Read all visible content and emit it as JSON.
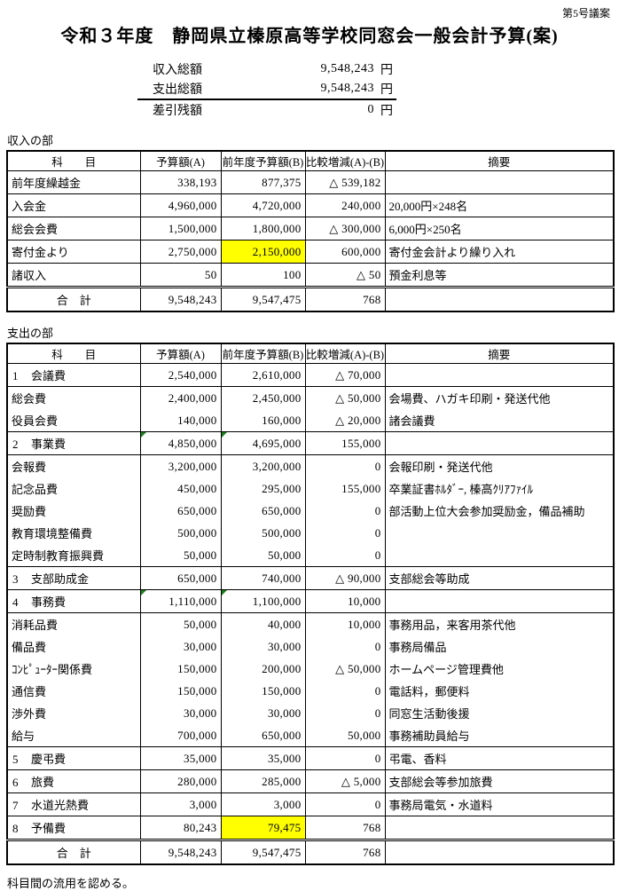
{
  "page": {
    "doc_number": "第5号議案",
    "title": "令和３年度　静岡県立榛原高等学校同窓会一般会計予算(案)",
    "footer_note": "科目間の流用を認める。"
  },
  "summary": {
    "rows": [
      {
        "label": "収入総額",
        "value": "9,548,243",
        "unit": "円"
      },
      {
        "label": "支出総額",
        "value": "9,548,243",
        "unit": "円"
      },
      {
        "label": "差引残額",
        "value": "0",
        "unit": "円"
      }
    ]
  },
  "columns": [
    "科　　目",
    "予算額(A)",
    "前年度予算額(B)",
    "比較増減(A)-(B)",
    "摘要"
  ],
  "colors": {
    "highlight_yellow": "#ffff00",
    "triangle_marker_green": "#1e7d1e",
    "border_black": "#000000"
  },
  "income": {
    "section_label": "収入の部",
    "rows": [
      {
        "item": "前年度繰越金",
        "a": "338,193",
        "b": "877,375",
        "diff": "△ 539,182",
        "remark": ""
      },
      {
        "item": "入会金",
        "a": "4,960,000",
        "b": "4,720,000",
        "diff": "240,000",
        "remark": "20,000円×248名"
      },
      {
        "item": "総会会費",
        "a": "1,500,000",
        "b": "1,800,000",
        "diff": "△ 300,000",
        "remark": "6,000円×250名"
      },
      {
        "item": "寄付金より",
        "a": "2,750,000",
        "b": "2,150,000",
        "diff": "600,000",
        "remark": "寄付金会計より繰り入れ",
        "hl_b": true
      },
      {
        "item": "諸収入",
        "a": "50",
        "b": "100",
        "diff": "△ 50",
        "remark": "預金利息等"
      },
      {
        "item": "合　計",
        "a": "9,548,243",
        "b": "9,547,475",
        "diff": "768",
        "remark": "",
        "total": true,
        "dbl": true
      }
    ]
  },
  "expense": {
    "section_label": "支出の部",
    "rows": [
      {
        "no": "1",
        "item": "会議費",
        "a": "2,540,000",
        "b": "2,610,000",
        "diff": "△ 70,000",
        "remark": ""
      },
      {
        "item": "総会費",
        "indent": true,
        "a": "2,400,000",
        "b": "2,450,000",
        "diff": "△ 50,000",
        "remark": "会場費、ハガキ印刷・発送代他",
        "nb": true
      },
      {
        "item": "役員会費",
        "indent": true,
        "a": "140,000",
        "b": "160,000",
        "diff": "△ 20,000",
        "remark": "諸会議費"
      },
      {
        "no": "2",
        "item": "事業費",
        "a": "4,850,000",
        "b": "4,695,000",
        "diff": "155,000",
        "remark": "",
        "tri_a": true,
        "tri_b": true
      },
      {
        "item": "会報費",
        "indent": true,
        "a": "3,200,000",
        "b": "3,200,000",
        "diff": "0",
        "remark": "会報印刷・発送代他",
        "nb": true
      },
      {
        "item": "記念品費",
        "indent": true,
        "a": "450,000",
        "b": "295,000",
        "diff": "155,000",
        "remark": "卒業証書ﾎﾙﾀﾞｰ, 榛高ｸﾘｱﾌｧｲﾙ",
        "nb": true
      },
      {
        "item": "奨励費",
        "indent": true,
        "a": "650,000",
        "b": "650,000",
        "diff": "0",
        "remark": "部活動上位大会参加奨励金，備品補助",
        "nb": true
      },
      {
        "item": "教育環境整備費",
        "indent": true,
        "a": "500,000",
        "b": "500,000",
        "diff": "0",
        "remark": "",
        "nb": true
      },
      {
        "item": "定時制教育振興費",
        "indent": true,
        "a": "50,000",
        "b": "50,000",
        "diff": "0",
        "remark": ""
      },
      {
        "no": "3",
        "item": "支部助成金",
        "a": "650,000",
        "b": "740,000",
        "diff": "△ 90,000",
        "remark": "支部総会等助成"
      },
      {
        "no": "4",
        "item": "事務費",
        "a": "1,110,000",
        "b": "1,100,000",
        "diff": "10,000",
        "remark": "",
        "tri_a": true,
        "tri_b": true
      },
      {
        "item": "消耗品費",
        "indent": true,
        "a": "50,000",
        "b": "40,000",
        "diff": "10,000",
        "remark": "事務用品，来客用茶代他",
        "nb": true
      },
      {
        "item": "備品費",
        "indent": true,
        "a": "30,000",
        "b": "30,000",
        "diff": "0",
        "remark": "事務局備品",
        "nb": true
      },
      {
        "item": "ｺﾝﾋﾟｭｰﾀｰ関係費",
        "indent": true,
        "a": "150,000",
        "b": "200,000",
        "diff": "△ 50,000",
        "remark": "ホームページ管理費他",
        "nb": true
      },
      {
        "item": "通信費",
        "indent": true,
        "a": "150,000",
        "b": "150,000",
        "diff": "0",
        "remark": "電話料，郵便料",
        "nb": true
      },
      {
        "item": "渉外費",
        "indent": true,
        "a": "30,000",
        "b": "30,000",
        "diff": "0",
        "remark": "同窓生活動後援",
        "nb": true
      },
      {
        "item": "給与",
        "indent": true,
        "a": "700,000",
        "b": "650,000",
        "diff": "50,000",
        "remark": "事務補助員給与"
      },
      {
        "no": "5",
        "item": "慶弔費",
        "a": "35,000",
        "b": "35,000",
        "diff": "0",
        "remark": "弔電、香料"
      },
      {
        "no": "6",
        "item": "旅費",
        "a": "280,000",
        "b": "285,000",
        "diff": "△ 5,000",
        "remark": "支部総会等参加旅費"
      },
      {
        "no": "7",
        "item": "水道光熱費",
        "a": "3,000",
        "b": "3,000",
        "diff": "0",
        "remark": "事務局電気・水道料"
      },
      {
        "no": "8",
        "item": "予備費",
        "a": "80,243",
        "b": "79,475",
        "diff": "768",
        "remark": "",
        "hl_b": true
      },
      {
        "item": "合　計",
        "a": "9,548,243",
        "b": "9,547,475",
        "diff": "768",
        "remark": "",
        "total": true,
        "dbl": true
      }
    ]
  }
}
